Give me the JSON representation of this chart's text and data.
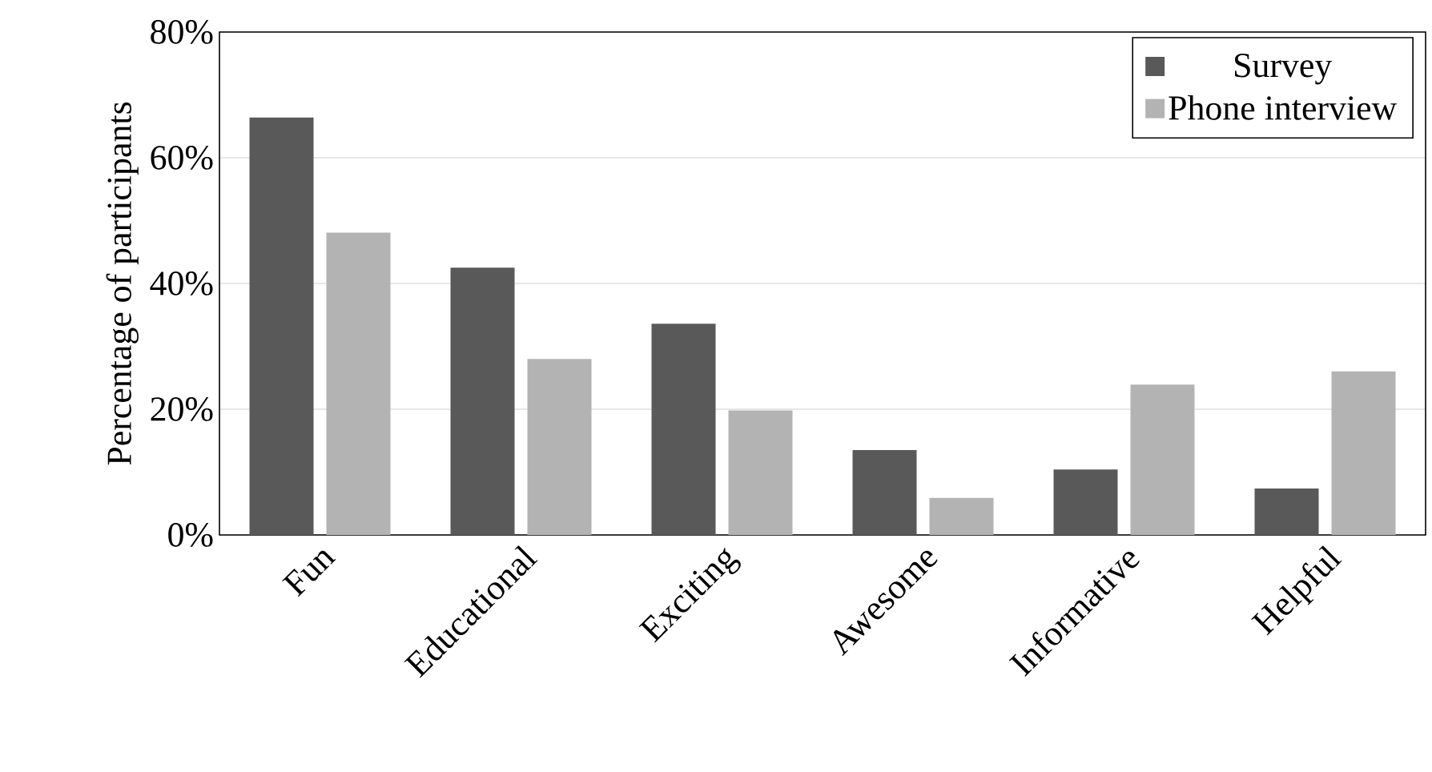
{
  "chart_data": {
    "type": "bar",
    "ylabel": "Percentage of participants",
    "categories": [
      "Fun",
      "Educational",
      "Exciting",
      "Awesome",
      "Informative",
      "Helpful"
    ],
    "series": [
      {
        "name": "Survey",
        "color": "#595959",
        "values": [
          66.4,
          42.5,
          33.6,
          13.5,
          10.4,
          7.4
        ]
      },
      {
        "name": "Phone interview",
        "color": "#b3b3b3",
        "values": [
          48.1,
          28,
          19.8,
          5.9,
          23.9,
          26
        ]
      }
    ],
    "ylim": [
      0,
      80
    ],
    "yticks": [
      {
        "value": 0,
        "label": "0%"
      },
      {
        "value": 20,
        "label": "20%"
      },
      {
        "value": 40,
        "label": "40%"
      },
      {
        "value": 60,
        "label": "60%"
      },
      {
        "value": 80,
        "label": "80%"
      }
    ],
    "grid": "y",
    "legend": "top right"
  }
}
